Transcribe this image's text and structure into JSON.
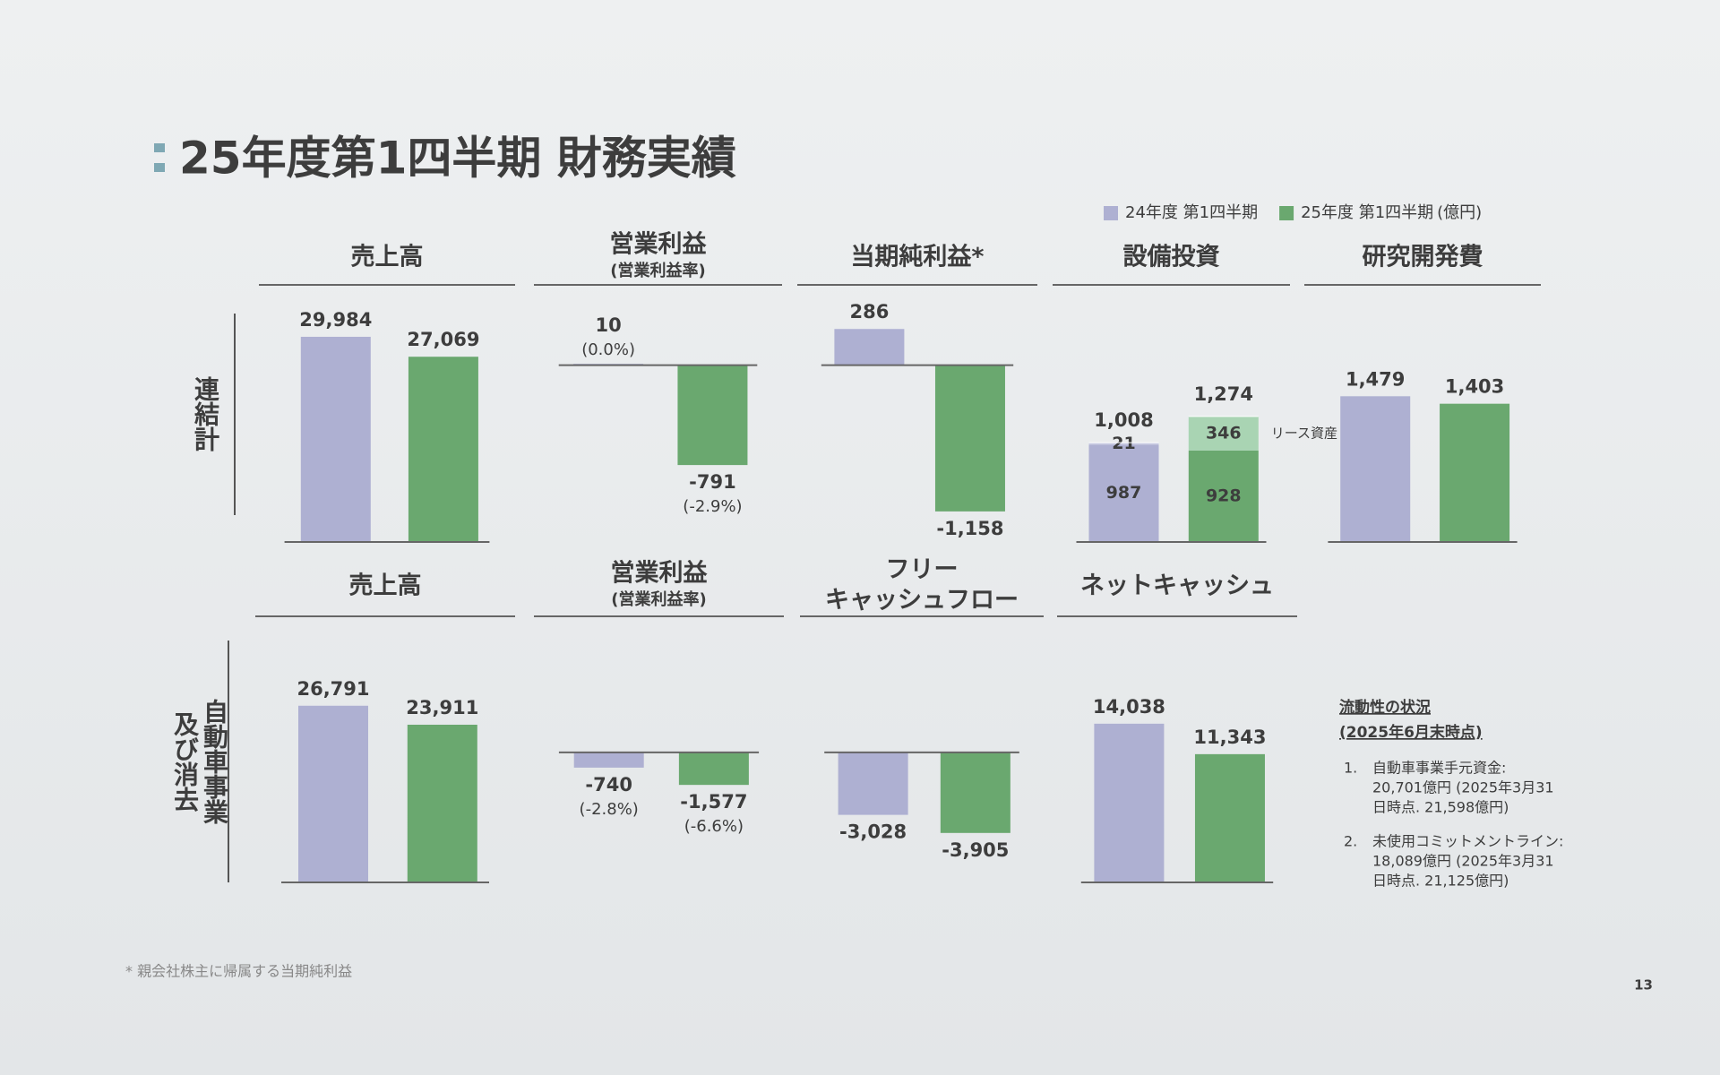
{
  "title": "25年度第1四半期 財務実績",
  "legend": {
    "items": [
      {
        "name": "24年度 第1四半期",
        "color": "#aeb0d2"
      },
      {
        "name": "25年度 第1四半期",
        "color": "#6aa86f"
      }
    ],
    "unit": "(億円)"
  },
  "rows": [
    {
      "label": [
        "連結計"
      ]
    },
    {
      "label": [
        "自動車事業",
        "及び消去"
      ]
    }
  ],
  "chart_data": [
    {
      "type": "bar",
      "title": "売上高",
      "values": [
        29984,
        27069
      ],
      "value_labels": [
        "29,984",
        "27,069"
      ],
      "ylim": [
        0,
        36000
      ]
    },
    {
      "type": "bar",
      "title": "営業利益",
      "subtitle": "(営業利益率)",
      "values": [
        10,
        -791
      ],
      "value_labels": [
        "10",
        "-791"
      ],
      "margin_labels": [
        "(0.0%)",
        "(-2.9%)"
      ],
      "ylim": [
        -1400,
        550
      ]
    },
    {
      "type": "bar",
      "title": "当期純利益*",
      "values": [
        286,
        -1158
      ],
      "value_labels": [
        "286",
        "-1,158"
      ],
      "ylim": [
        -1400,
        550
      ]
    },
    {
      "type": "stacked_bar",
      "title": "設備投資",
      "series": [
        {
          "values": [
            987,
            928
          ],
          "value_labels": [
            "987",
            "928"
          ]
        },
        {
          "name": "リース資産",
          "values": [
            21,
            346
          ],
          "value_labels": [
            "21",
            "346"
          ],
          "colors": [
            "#c9cbe3",
            "#a9d4b3"
          ]
        }
      ],
      "totals": [
        1008,
        1274
      ],
      "total_labels": [
        "1,008",
        "1,274"
      ],
      "ylim": [
        0,
        2500
      ]
    },
    {
      "type": "bar",
      "title": "研究開発費",
      "values": [
        1479,
        1403
      ],
      "value_labels": [
        "1,479",
        "1,403"
      ],
      "ylim": [
        0,
        2500
      ]
    },
    {
      "type": "bar",
      "title": "売上高",
      "values": [
        26791,
        23911
      ],
      "value_labels": [
        "26,791",
        "23,911"
      ],
      "ylim": [
        0,
        36000
      ]
    },
    {
      "type": "bar",
      "title": "営業利益",
      "subtitle": "(営業利益率)",
      "values": [
        -740,
        -1577
      ],
      "value_labels": [
        "-740",
        "-1,577"
      ],
      "margin_labels": [
        "(-2.8%)",
        "(-6.6%)"
      ],
      "ylim": [
        -6300,
        5200
      ]
    },
    {
      "type": "bar",
      "title": [
        "フリー",
        "キャッシュフロー"
      ],
      "values": [
        -3028,
        -3905
      ],
      "value_labels": [
        "-3,028",
        "-3,905"
      ],
      "ylim": [
        -6300,
        5200
      ]
    },
    {
      "type": "bar",
      "title": "ネットキャッシュ",
      "values": [
        14038,
        11343
      ],
      "value_labels": [
        "14,038",
        "11,343"
      ],
      "ylim": [
        0,
        21000
      ]
    }
  ],
  "liquidity": {
    "title": "流動性の状況",
    "subtitle": "(2025年6月末時点)",
    "items": [
      {
        "number": "1.",
        "lines": [
          "自動車事業手元資金:",
          "20,701億円 (2025年3月31",
          "日時点. 21,598億円)"
        ]
      },
      {
        "number": "2.",
        "lines": [
          "未使用コミットメントライン:",
          "18,089億円 (2025年3月31",
          "日時点. 21,125億円)"
        ]
      }
    ]
  },
  "footnote": "* 親会社株主に帰属する当期純利益",
  "page_number": "13"
}
